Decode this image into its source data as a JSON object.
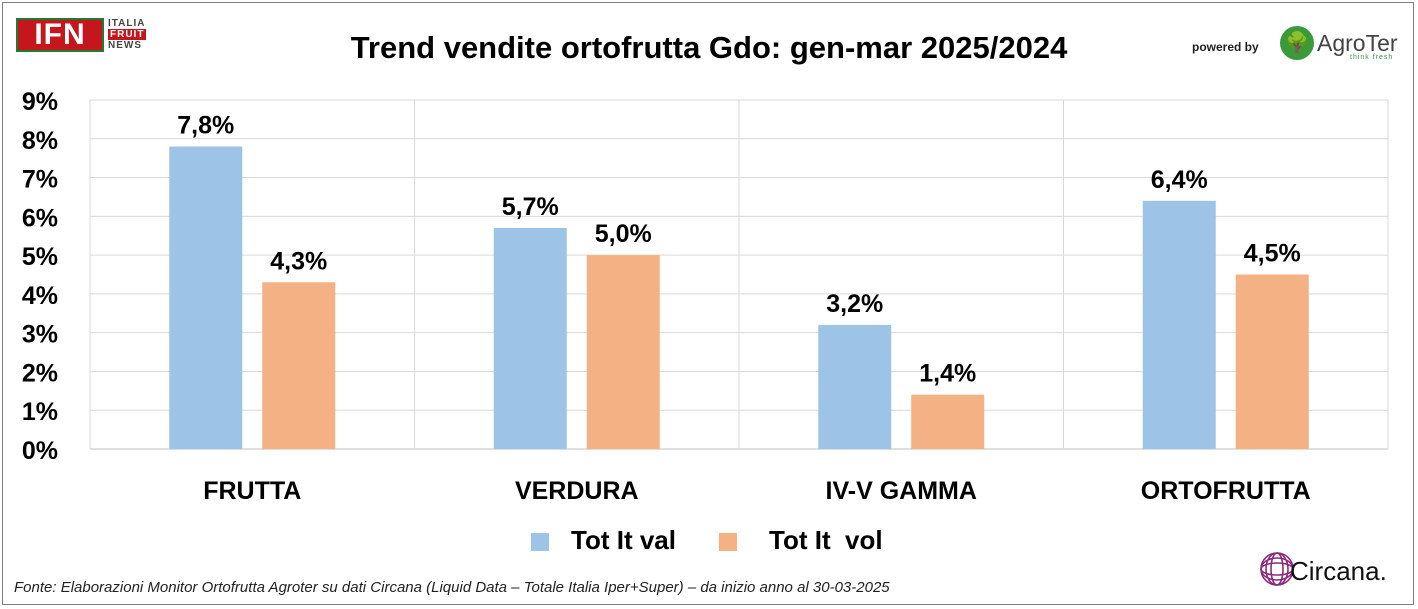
{
  "header": {
    "logo_main": "IFN",
    "logo_sub": [
      "ITALIA",
      "FRUIT",
      "NEWS"
    ],
    "powered_by": "powered by",
    "agroter_name": "AgroTer",
    "agroter_tagline": "think fresh"
  },
  "footer": {
    "source_note": "Fonte: Elaborazioni Monitor Ortofrutta Agroter su dati Circana (Liquid Data – Totale Italia Iper+Super) –  da inizio anno al 30-03-2025",
    "circana_name": "Circana."
  },
  "colors": {
    "series_val": "#9dc3e6",
    "series_vol": "#f4b183",
    "grid": "#d9d9d9",
    "brand_red": "#c4161c",
    "brand_green": "#3a9a3a",
    "circana_purple": "#8e2a7e"
  },
  "chart_data": {
    "type": "bar",
    "title": "Trend vendite ortofrutta Gdo: gen-mar 2025/2024",
    "categories": [
      "FRUTTA",
      "VERDURA",
      "IV-V GAMMA",
      "ORTOFRUTTA"
    ],
    "series": [
      {
        "name": "Tot It val",
        "values": [
          7.8,
          5.7,
          3.2,
          6.4
        ],
        "labels": [
          "7,8%",
          "5,7%",
          "3,2%",
          "6,4%"
        ]
      },
      {
        "name": "Tot It  vol",
        "values": [
          4.3,
          5.0,
          1.4,
          4.5
        ],
        "labels": [
          "4,3%",
          "5,0%",
          "1,4%",
          "4,5%"
        ]
      }
    ],
    "yticks": [
      "0%",
      "1%",
      "2%",
      "3%",
      "4%",
      "5%",
      "6%",
      "7%",
      "8%",
      "9%"
    ],
    "ylim": [
      0,
      9
    ],
    "grid": true,
    "legend_position": "bottom"
  }
}
